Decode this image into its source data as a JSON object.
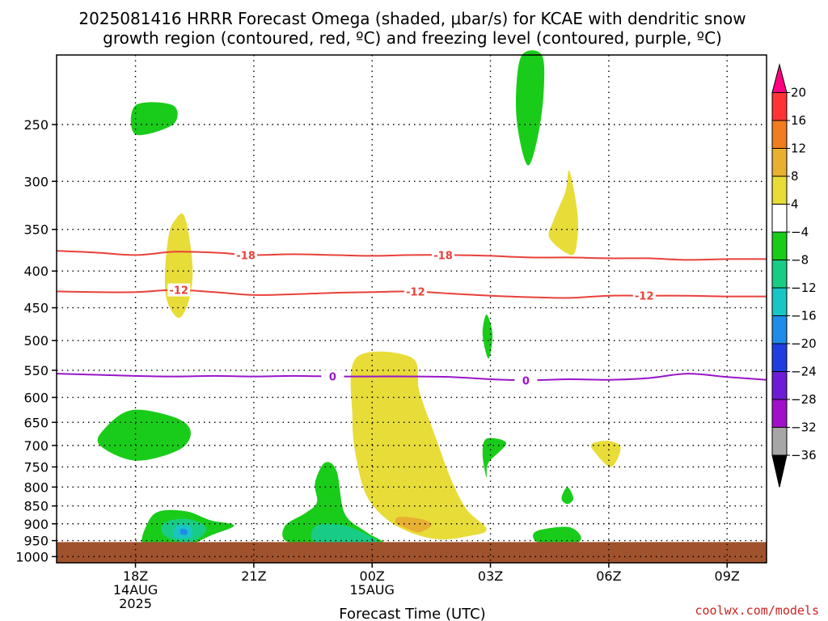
{
  "chart_data": {
    "type": "contour",
    "title_lines": [
      "2025081416 HRRR Forecast Omega (shaded, μbar/s) for KCAE with dendritic snow",
      "growth region (contoured, red, ºC) and freezing level (contoured, purple, ºC)"
    ],
    "xlabel": "Forecast Time (UTC)",
    "x_ticks": [
      {
        "hour": 18,
        "lines": [
          "18Z",
          "14AUG",
          "2025"
        ]
      },
      {
        "hour": 21,
        "lines": [
          "21Z"
        ]
      },
      {
        "hour": 24,
        "lines": [
          "00Z",
          "15AUG"
        ]
      },
      {
        "hour": 27,
        "lines": [
          "03Z"
        ]
      },
      {
        "hour": 30,
        "lines": [
          "06Z"
        ]
      },
      {
        "hour": 33,
        "lines": [
          "09Z"
        ]
      }
    ],
    "xlim": [
      16,
      34
    ],
    "y_ticks": [
      250,
      300,
      350,
      400,
      450,
      500,
      550,
      600,
      650,
      700,
      750,
      800,
      850,
      900,
      950,
      1000
    ],
    "ylim": [
      1020,
      200
    ],
    "y_scale": "log-pressure",
    "grid": true,
    "colorbar": {
      "labels": [
        "20",
        "16",
        "12",
        "8",
        "4",
        "−4",
        "−8",
        "−12",
        "−16",
        "−20",
        "−24",
        "−28",
        "−32",
        "−36"
      ],
      "colors": [
        "#ff0080",
        "#ff3333",
        "#f07d1e",
        "#e8b030",
        "#e8dc38",
        "#ffffff",
        "#19cc19",
        "#19cc85",
        "#19c5c5",
        "#1e8ce8",
        "#1f3ee0",
        "#6e1bd6",
        "#a010c8",
        "#a6a6a6",
        "#000000"
      ]
    },
    "contour_lines": [
      {
        "label": "-18",
        "color": "#e8413a",
        "label_hours": [
          20.8,
          25.8
        ],
        "points": [
          [
            16,
            375
          ],
          [
            17,
            377
          ],
          [
            18,
            380
          ],
          [
            19,
            376
          ],
          [
            20,
            377
          ],
          [
            21,
            380
          ],
          [
            22,
            379
          ],
          [
            23,
            380
          ],
          [
            24,
            381
          ],
          [
            25,
            380
          ],
          [
            26,
            380
          ],
          [
            27,
            381
          ],
          [
            28,
            383
          ],
          [
            29,
            383
          ],
          [
            30,
            384
          ],
          [
            31,
            384
          ],
          [
            32,
            386
          ],
          [
            33,
            385
          ],
          [
            34,
            385
          ]
        ]
      },
      {
        "label": "-12",
        "color": "#e8413a",
        "label_hours": [
          19.1,
          25.1,
          30.9
        ],
        "points": [
          [
            16,
            427
          ],
          [
            17,
            428
          ],
          [
            18,
            428
          ],
          [
            19,
            425
          ],
          [
            20,
            428
          ],
          [
            21,
            432
          ],
          [
            22,
            431
          ],
          [
            23,
            429
          ],
          [
            24,
            428
          ],
          [
            25,
            427
          ],
          [
            26,
            430
          ],
          [
            27,
            433
          ],
          [
            28,
            435
          ],
          [
            29,
            436
          ],
          [
            30,
            433
          ],
          [
            31,
            433
          ],
          [
            32,
            433
          ],
          [
            33,
            434
          ],
          [
            34,
            434
          ]
        ]
      },
      {
        "label": "0",
        "color": "#9915c8",
        "label_hours": [
          23.0,
          27.9
        ],
        "points": [
          [
            16,
            556
          ],
          [
            17,
            558
          ],
          [
            18,
            560
          ],
          [
            19,
            561
          ],
          [
            20,
            560
          ],
          [
            21,
            561
          ],
          [
            22,
            560
          ],
          [
            23,
            561
          ],
          [
            24,
            561
          ],
          [
            25,
            561
          ],
          [
            26,
            562
          ],
          [
            27,
            566
          ],
          [
            28,
            568
          ],
          [
            29,
            566
          ],
          [
            30,
            567
          ],
          [
            31,
            564
          ],
          [
            32,
            556
          ],
          [
            33,
            562
          ],
          [
            34,
            567
          ]
        ]
      }
    ],
    "omega_regions": [
      {
        "value": 5,
        "color": "#e8dc38",
        "points": [
          [
            23.6,
            528
          ],
          [
            25.0,
            528
          ],
          [
            25.2,
            590
          ],
          [
            25.6,
            680
          ],
          [
            26.0,
            780
          ],
          [
            26.4,
            860
          ],
          [
            26.9,
            915
          ],
          [
            26.5,
            935
          ],
          [
            25.6,
            945
          ],
          [
            24.6,
            905
          ],
          [
            23.9,
            830
          ],
          [
            23.6,
            730
          ],
          [
            23.5,
            640
          ]
        ]
      },
      {
        "value": 9,
        "color": "#e8b030",
        "points": [
          [
            24.7,
            880
          ],
          [
            25.3,
            888
          ],
          [
            25.5,
            905
          ],
          [
            25.2,
            925
          ],
          [
            24.9,
            915
          ],
          [
            24.6,
            898
          ]
        ]
      },
      {
        "value": 5,
        "color": "#e8dc38",
        "points": [
          [
            19.0,
            340
          ],
          [
            19.2,
            333
          ],
          [
            19.35,
            355
          ],
          [
            19.45,
            400
          ],
          [
            19.35,
            440
          ],
          [
            19.1,
            465
          ],
          [
            18.8,
            440
          ],
          [
            18.75,
            400
          ],
          [
            18.85,
            355
          ]
        ]
      },
      {
        "value": 5,
        "color": "#e8dc38",
        "points": [
          [
            29.0,
            290
          ],
          [
            29.2,
            330
          ],
          [
            29.2,
            362
          ],
          [
            29.05,
            380
          ],
          [
            28.5,
            360
          ],
          [
            28.6,
            340
          ],
          [
            28.9,
            310
          ]
        ]
      },
      {
        "value": 5,
        "color": "#e8dc38",
        "points": [
          [
            29.6,
            695
          ],
          [
            30.0,
            690
          ],
          [
            30.3,
            705
          ],
          [
            30.05,
            750
          ],
          [
            29.6,
            710
          ]
        ]
      },
      {
        "value": -6,
        "color": "#19cc19",
        "points": [
          [
            27.8,
            200
          ],
          [
            28.3,
            200
          ],
          [
            28.35,
            225
          ],
          [
            28.2,
            260
          ],
          [
            27.95,
            285
          ],
          [
            27.7,
            255
          ],
          [
            27.65,
            225
          ]
        ]
      },
      {
        "value": -6,
        "color": "#19cc19",
        "points": [
          [
            18.0,
            235
          ],
          [
            18.95,
            235
          ],
          [
            18.95,
            250
          ],
          [
            18.0,
            258
          ]
        ]
      },
      {
        "value": -6,
        "color": "#19cc19",
        "points": [
          [
            26.9,
            460
          ],
          [
            27.05,
            490
          ],
          [
            26.95,
            530
          ],
          [
            26.8,
            490
          ]
        ]
      },
      {
        "value": -6,
        "color": "#19cc19",
        "points": [
          [
            17.9,
            625
          ],
          [
            19.0,
            640
          ],
          [
            19.4,
            670
          ],
          [
            19.1,
            710
          ],
          [
            18.0,
            735
          ],
          [
            17.1,
            700
          ],
          [
            17.2,
            665
          ]
        ]
      },
      {
        "value": -6,
        "color": "#19cc19",
        "points": [
          [
            18.6,
            865
          ],
          [
            19.3,
            865
          ],
          [
            19.9,
            890
          ],
          [
            20.5,
            905
          ],
          [
            19.9,
            935
          ],
          [
            19.0,
            980
          ],
          [
            18.2,
            965
          ],
          [
            18.3,
            900
          ]
        ]
      },
      {
        "value": -9,
        "color": "#19cc85",
        "points": [
          [
            18.9,
            890
          ],
          [
            19.4,
            888
          ],
          [
            19.8,
            915
          ],
          [
            19.4,
            955
          ],
          [
            18.8,
            940
          ],
          [
            18.65,
            910
          ]
        ]
      },
      {
        "value": -14,
        "color": "#19c5c5",
        "points": [
          [
            19.05,
            905
          ],
          [
            19.4,
            908
          ],
          [
            19.4,
            940
          ],
          [
            19.0,
            940
          ]
        ]
      },
      {
        "value": -18,
        "color": "#1e8ce8",
        "points": [
          [
            19.15,
            915
          ],
          [
            19.3,
            918
          ],
          [
            19.3,
            932
          ],
          [
            19.15,
            930
          ]
        ]
      },
      {
        "value": -6,
        "color": "#19cc19",
        "points": [
          [
            22.8,
            740
          ],
          [
            23.1,
            760
          ],
          [
            23.3,
            870
          ],
          [
            23.8,
            920
          ],
          [
            24.3,
            955
          ],
          [
            24.4,
            980
          ],
          [
            23.8,
            975
          ],
          [
            22.5,
            965
          ],
          [
            21.8,
            950
          ],
          [
            21.8,
            905
          ],
          [
            22.3,
            870
          ],
          [
            22.6,
            840
          ],
          [
            22.55,
            790
          ]
        ]
      },
      {
        "value": -9,
        "color": "#19cc85",
        "points": [
          [
            22.6,
            905
          ],
          [
            23.3,
            905
          ],
          [
            24.0,
            940
          ],
          [
            24.1,
            955
          ],
          [
            23.2,
            970
          ],
          [
            22.5,
            950
          ]
        ]
      },
      {
        "value": -6,
        "color": "#19cc19",
        "points": [
          [
            26.9,
            685
          ],
          [
            27.4,
            695
          ],
          [
            26.95,
            740
          ],
          [
            26.9,
            775
          ],
          [
            26.8,
            720
          ]
        ]
      },
      {
        "value": -6,
        "color": "#19cc19",
        "points": [
          [
            28.95,
            800
          ],
          [
            29.1,
            830
          ],
          [
            28.95,
            845
          ],
          [
            28.8,
            830
          ]
        ]
      },
      {
        "value": -6,
        "color": "#19cc19",
        "points": [
          [
            28.2,
            920
          ],
          [
            29.0,
            910
          ],
          [
            29.3,
            945
          ],
          [
            28.9,
            970
          ],
          [
            28.4,
            965
          ],
          [
            28.1,
            945
          ]
        ]
      }
    ],
    "ground_pressure": 1000
  },
  "footer": {
    "credit": "coolwx.com/models"
  }
}
